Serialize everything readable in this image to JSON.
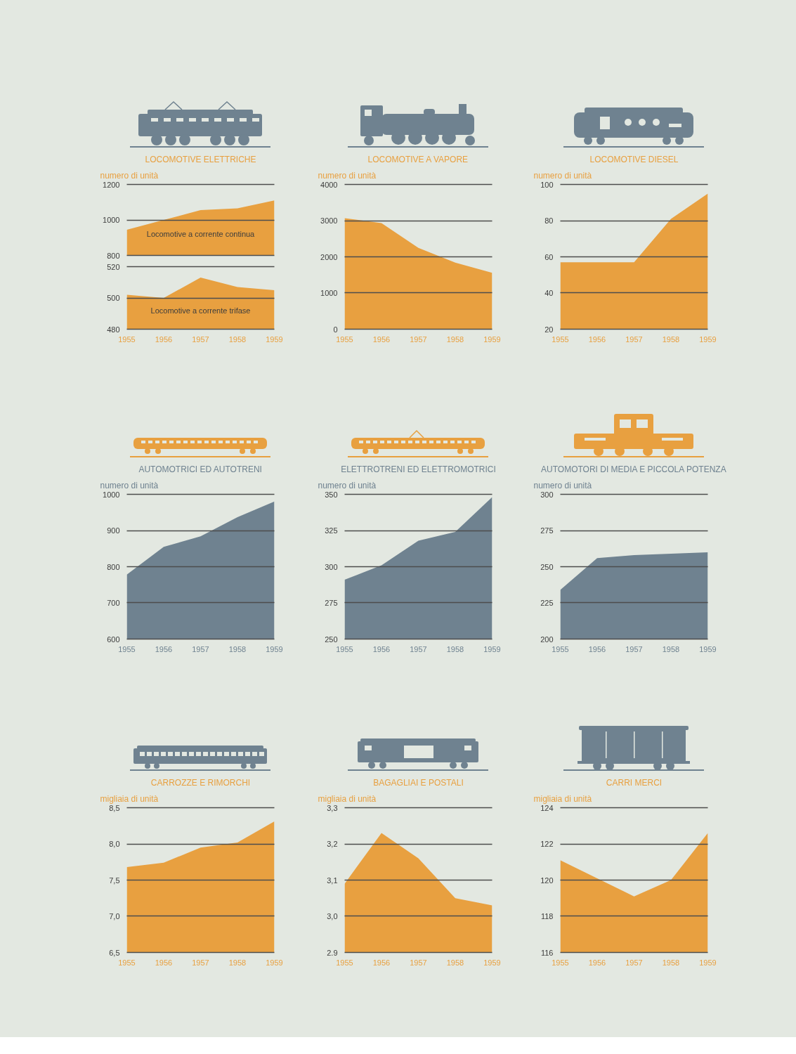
{
  "chart_data": [
    {
      "type": "area",
      "title": "LOCOMOTIVE ELETTRICHE",
      "ylabel": "numero di unità",
      "x": [
        1955,
        1956,
        1957,
        1958,
        1959
      ],
      "xlim": [
        1955,
        1959
      ],
      "xticks": [
        1955,
        1956,
        1957,
        1958,
        1959
      ],
      "ylim": [
        800,
        1200
      ],
      "yticks": [
        800,
        1000,
        1200
      ],
      "series": [
        {
          "name": "Locomotive a corrente continua",
          "color": "#e8a040",
          "values": [
            945,
            1000,
            1055,
            1065,
            1110
          ]
        }
      ],
      "grid": "y",
      "tick_labels": "y"
    },
    {
      "type": "area",
      "x": [
        1955,
        1956,
        1957,
        1958,
        1959
      ],
      "xlim": [
        1955,
        1959
      ],
      "xticks": [
        1955,
        1956,
        1957,
        1958,
        1959
      ],
      "ylim": [
        480,
        520
      ],
      "yticks": [
        480,
        500,
        520
      ],
      "series": [
        {
          "name": "Locomotive a corrente trifase",
          "color": "#e8a040",
          "values": [
            502,
            500,
            513,
            507,
            505
          ]
        }
      ],
      "grid": "y"
    },
    {
      "type": "area",
      "title": "LOCOMOTIVE A VAPORE",
      "ylabel": "numero di unità",
      "x": [
        1955,
        1956,
        1957,
        1958,
        1959
      ],
      "xlim": [
        1955,
        1959
      ],
      "xticks": [
        1955,
        1956,
        1957,
        1958,
        1959
      ],
      "ylim": [
        0,
        4000
      ],
      "yticks": [
        0,
        1000,
        2000,
        3000,
        4000
      ],
      "series": [
        {
          "color": "#e8a040",
          "values": [
            3070,
            2930,
            2250,
            1840,
            1560
          ]
        }
      ],
      "grid": "y"
    },
    {
      "type": "area",
      "title": "LOCOMOTIVE DIESEL",
      "ylabel": "numero di unità",
      "x": [
        1955,
        1956,
        1957,
        1958,
        1959
      ],
      "xlim": [
        1955,
        1959
      ],
      "xticks": [
        1955,
        1956,
        1957,
        1958,
        1959
      ],
      "ylim": [
        20,
        100
      ],
      "yticks": [
        20,
        40,
        60,
        80,
        100
      ],
      "series": [
        {
          "color": "#e8a040",
          "values": [
            57,
            57,
            57,
            81,
            95
          ]
        }
      ],
      "grid": "y"
    },
    {
      "type": "area",
      "title": "AUTOMOTRICI ED AUTOTRENI",
      "ylabel": "numero di unità",
      "x": [
        1955,
        1956,
        1957,
        1958,
        1959
      ],
      "xlim": [
        1955,
        1959
      ],
      "xticks": [
        1955,
        1956,
        1957,
        1958,
        1959
      ],
      "ylim": [
        600,
        1000
      ],
      "yticks": [
        600,
        700,
        800,
        900,
        1000
      ],
      "series": [
        {
          "color": "#6f8290",
          "values": [
            778,
            855,
            884,
            937,
            980
          ]
        }
      ],
      "grid": "y"
    },
    {
      "type": "area",
      "title": "ELETTROTRENI ED ELETTROMOTRICI",
      "ylabel": "numero di unità",
      "x": [
        1955,
        1956,
        1957,
        1958,
        1959
      ],
      "xlim": [
        1955,
        1959
      ],
      "xticks": [
        1955,
        1956,
        1957,
        1958,
        1959
      ],
      "ylim": [
        250,
        350
      ],
      "yticks": [
        250,
        275,
        300,
        325,
        350
      ],
      "series": [
        {
          "color": "#6f8290",
          "values": [
            291,
            301,
            318,
            324,
            348
          ]
        }
      ],
      "grid": "y"
    },
    {
      "type": "area",
      "title": "AUTOMOTORI DI MEDIA E PICCOLA POTENZA",
      "ylabel": "numero di unità",
      "x": [
        1955,
        1956,
        1957,
        1958,
        1959
      ],
      "xlim": [
        1955,
        1959
      ],
      "xticks": [
        1955,
        1956,
        1957,
        1958,
        1959
      ],
      "ylim": [
        200,
        300
      ],
      "yticks": [
        200,
        225,
        250,
        275,
        300
      ],
      "series": [
        {
          "color": "#6f8290",
          "values": [
            234,
            256,
            258,
            259,
            260
          ]
        }
      ],
      "grid": "y"
    },
    {
      "type": "area",
      "title": "CARROZZE E RIMORCHI",
      "ylabel": "migliaia di unità",
      "x": [
        1955,
        1956,
        1957,
        1958,
        1959
      ],
      "xlim": [
        1955,
        1959
      ],
      "xticks": [
        1955,
        1956,
        1957,
        1958,
        1959
      ],
      "ylim": [
        6.5,
        8.5
      ],
      "yticks": [
        {
          "value": 6.5,
          "label": "6,5"
        },
        {
          "value": 7.0,
          "label": "7,0"
        },
        {
          "value": 7.5,
          "label": "7,5"
        },
        {
          "value": 8.0,
          "label": "8,0"
        },
        {
          "value": 8.5,
          "label": "8,5"
        }
      ],
      "series": [
        {
          "color": "#e8a040",
          "values": [
            7.68,
            7.74,
            7.95,
            8.02,
            8.31
          ]
        }
      ],
      "grid": "y"
    },
    {
      "type": "area",
      "title": "BAGAGLIAI E POSTALI",
      "ylabel": "migliaia di unità",
      "x": [
        1955,
        1956,
        1957,
        1958,
        1959
      ],
      "xlim": [
        1955,
        1959
      ],
      "xticks": [
        1955,
        1956,
        1957,
        1958,
        1959
      ],
      "ylim": [
        2.9,
        3.3
      ],
      "yticks": [
        2.9,
        {
          "value": 3.0,
          "label": "3,0"
        },
        {
          "value": 3.1,
          "label": "3,1"
        },
        {
          "value": 3.2,
          "label": "3,2"
        },
        {
          "value": 3.3,
          "label": "3,3"
        }
      ],
      "series": [
        {
          "color": "#e8a040",
          "values": [
            3.09,
            3.23,
            3.16,
            3.05,
            3.03
          ]
        }
      ],
      "grid": "y"
    },
    {
      "type": "area",
      "title": "CARRI MERCI",
      "ylabel": "migliaia di unità",
      "x": [
        1955,
        1956,
        1957,
        1958,
        1959
      ],
      "xlim": [
        1955,
        1959
      ],
      "xticks": [
        1955,
        1956,
        1957,
        1958,
        1959
      ],
      "ylim": [
        116,
        124
      ],
      "yticks": [
        116,
        118,
        120,
        122,
        124
      ],
      "series": [
        {
          "color": "#e8a040",
          "values": [
            121.1,
            120.1,
            119.1,
            120.0,
            122.6
          ]
        }
      ],
      "grid": "y"
    }
  ]
}
